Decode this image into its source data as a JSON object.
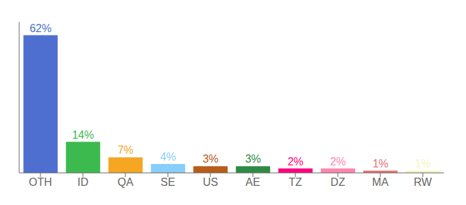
{
  "chart_data": {
    "type": "bar",
    "categories": [
      "OTH",
      "ID",
      "QA",
      "SE",
      "US",
      "AE",
      "TZ",
      "DZ",
      "MA",
      "RW"
    ],
    "values": [
      62,
      14,
      7,
      4,
      3,
      3,
      2,
      2,
      1,
      1
    ],
    "value_labels": [
      "62%",
      "14%",
      "7%",
      "4%",
      "3%",
      "3%",
      "2%",
      "2%",
      "1%",
      "1%"
    ],
    "data_labels": true,
    "colors": [
      "#4f6fd0",
      "#3dba4e",
      "#f5a623",
      "#87cefa",
      "#b85c1a",
      "#2e8b44",
      "#ff0080",
      "#ff85b0",
      "#e87070",
      "#f5f5c0"
    ],
    "ylim": [
      0,
      68
    ],
    "tick_labels": "x",
    "grid": false
  }
}
